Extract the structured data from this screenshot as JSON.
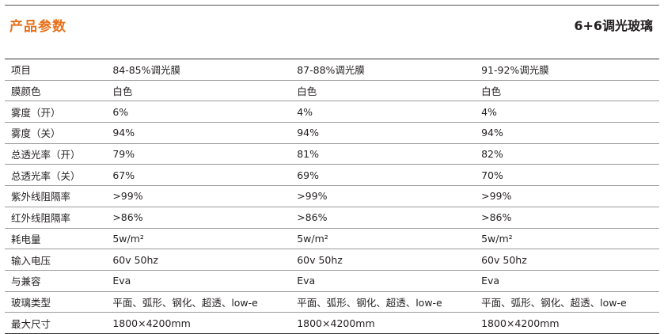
{
  "header": {
    "title": "产品参数",
    "product": "6+6调光玻璃"
  },
  "table": {
    "columns": [
      "项目",
      "84-85%调光膜",
      "87-88%调光膜",
      "91-92%调光膜"
    ],
    "rows": [
      [
        "膜颜色",
        "白色",
        "白色",
        "白色"
      ],
      [
        "雾度（开）",
        "6%",
        "4%",
        "4%"
      ],
      [
        "雾度（关）",
        "94%",
        "94%",
        "94%"
      ],
      [
        "总透光率（开）",
        "79%",
        "81%",
        "82%"
      ],
      [
        "总透光率（关）",
        "67%",
        "69%",
        "70%"
      ],
      [
        "紫外线阻隔率",
        ">99%",
        ">99%",
        ">99%"
      ],
      [
        "红外线阻隔率",
        ">86%",
        ">86%",
        ">86%"
      ],
      [
        "耗电量",
        "5w/m²",
        "5w/m²",
        "5w/m²"
      ],
      [
        "输入电压",
        "60v 50hz",
        "60v 50hz",
        "60v 50hz"
      ],
      [
        "与兼容",
        "Eva",
        "Eva",
        "Eva"
      ],
      [
        "玻璃类型",
        "平面、弧形、钢化、超透、low-e",
        "平面、弧形、钢化、超透、low-e",
        "平面、弧形、钢化、超透、low-e"
      ],
      [
        "最大尺寸",
        "1800×4200mm",
        "1800×4200mm",
        "1800×4200mm"
      ]
    ]
  }
}
